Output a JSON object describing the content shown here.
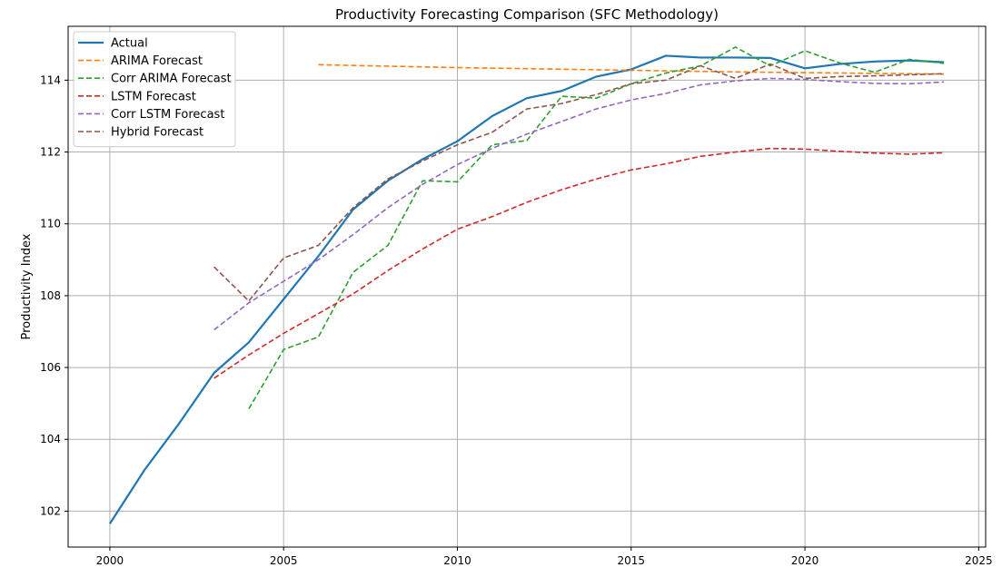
{
  "chart_data": {
    "type": "line",
    "title": "Productivity Forecasting Comparison (SFC Methodology)",
    "xlabel": "",
    "ylabel": "Productivity Index",
    "xlim": [
      1998.8,
      2025.2
    ],
    "ylim": [
      101.0,
      115.5
    ],
    "xticks": [
      2000,
      2005,
      2010,
      2015,
      2020,
      2025
    ],
    "yticks": [
      102,
      104,
      106,
      108,
      110,
      112,
      114
    ],
    "grid": true,
    "legend": "upper left",
    "series": [
      {
        "name": "Actual",
        "color": "#1f77b4",
        "dash": "solid",
        "x": [
          2000,
          2001,
          2002,
          2003,
          2004,
          2005,
          2006,
          2007,
          2008,
          2009,
          2010,
          2011,
          2012,
          2013,
          2014,
          2015,
          2016,
          2017,
          2018,
          2019,
          2020,
          2021,
          2022,
          2023,
          2024
        ],
        "y": [
          101.65,
          103.15,
          104.45,
          105.85,
          106.7,
          107.9,
          109.1,
          110.4,
          111.2,
          111.8,
          112.3,
          113.0,
          113.5,
          113.7,
          114.1,
          114.3,
          114.68,
          114.63,
          114.63,
          114.62,
          114.33,
          114.45,
          114.52,
          114.55,
          114.5
        ]
      },
      {
        "name": "ARIMA Forecast",
        "color": "#ff7f0e",
        "dash": "dashed",
        "x": [
          2006,
          2008,
          2010,
          2012,
          2014,
          2016,
          2018,
          2020,
          2022,
          2024
        ],
        "y": [
          114.43,
          114.39,
          114.35,
          114.32,
          114.29,
          114.26,
          114.23,
          114.21,
          114.19,
          114.17
        ]
      },
      {
        "name": "Corr ARIMA Forecast",
        "color": "#2ca02c",
        "dash": "dashed",
        "x": [
          2004,
          2005,
          2006,
          2007,
          2008,
          2009,
          2010,
          2011,
          2012,
          2013,
          2014,
          2015,
          2016,
          2017,
          2018,
          2019,
          2020,
          2021,
          2022,
          2023,
          2024
        ],
        "y": [
          104.85,
          106.5,
          106.85,
          108.65,
          109.4,
          111.2,
          111.17,
          112.2,
          112.32,
          113.55,
          113.5,
          113.9,
          114.2,
          114.4,
          114.92,
          114.4,
          114.82,
          114.48,
          114.22,
          114.58,
          114.47
        ]
      },
      {
        "name": "LSTM Forecast",
        "color": "#d62728",
        "dash": "dashed",
        "x": [
          2003,
          2004,
          2005,
          2006,
          2007,
          2008,
          2009,
          2010,
          2011,
          2012,
          2013,
          2014,
          2015,
          2016,
          2017,
          2018,
          2019,
          2020,
          2021,
          2022,
          2023,
          2024
        ],
        "y": [
          105.7,
          106.35,
          106.95,
          107.5,
          108.05,
          108.7,
          109.3,
          109.85,
          110.2,
          110.6,
          110.95,
          111.25,
          111.5,
          111.67,
          111.88,
          112.0,
          112.1,
          112.08,
          112.02,
          111.97,
          111.94,
          111.98
        ]
      },
      {
        "name": "Corr LSTM Forecast",
        "color": "#9467bd",
        "dash": "dashed",
        "x": [
          2003,
          2004,
          2005,
          2006,
          2007,
          2008,
          2009,
          2010,
          2011,
          2012,
          2013,
          2014,
          2015,
          2016,
          2017,
          2018,
          2019,
          2020,
          2021,
          2022,
          2023,
          2024
        ],
        "y": [
          107.05,
          107.8,
          108.4,
          109.0,
          109.7,
          110.45,
          111.1,
          111.65,
          112.1,
          112.5,
          112.85,
          113.2,
          113.45,
          113.63,
          113.87,
          113.98,
          114.05,
          114.02,
          113.96,
          113.91,
          113.9,
          113.95
        ]
      },
      {
        "name": "Hybrid Forecast",
        "color": "#8c564b",
        "dash": "dashed",
        "x": [
          2003,
          2004,
          2005,
          2006,
          2007,
          2008,
          2009,
          2010,
          2011,
          2012,
          2013,
          2014,
          2015,
          2016,
          2017,
          2018,
          2019,
          2020,
          2021,
          2022,
          2023,
          2024
        ],
        "y": [
          108.8,
          107.85,
          109.05,
          109.4,
          110.45,
          111.25,
          111.75,
          112.2,
          112.55,
          113.2,
          113.35,
          113.6,
          113.9,
          114.0,
          114.4,
          114.05,
          114.45,
          114.05,
          114.1,
          114.12,
          114.15,
          114.18
        ]
      }
    ]
  }
}
